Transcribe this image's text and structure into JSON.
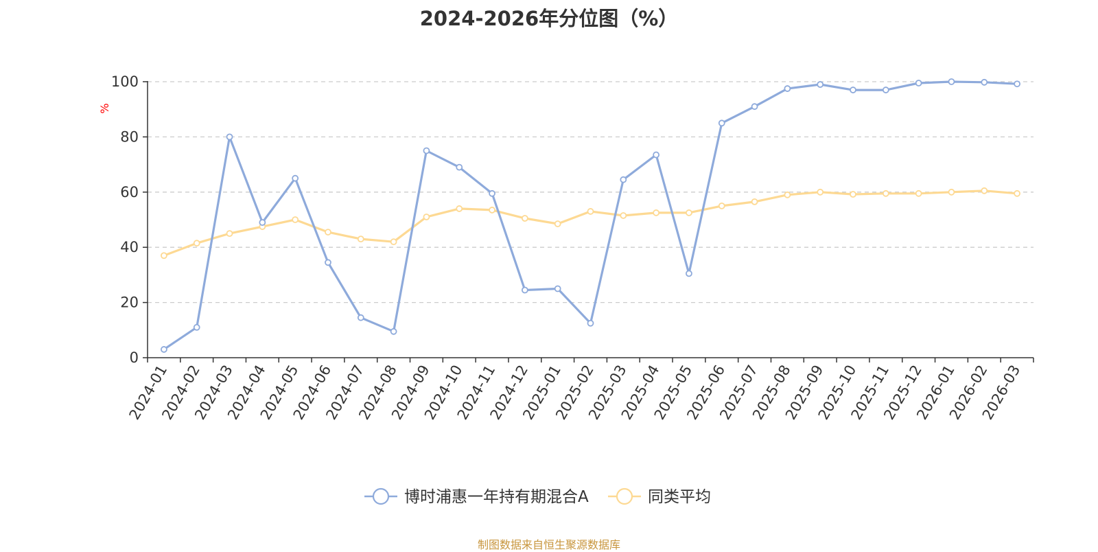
{
  "colors": {
    "series_primary": "#8eaadb",
    "series_secondary": "#fdd993",
    "grid": "#cccccc",
    "axis": "#333333",
    "ylabel": "#ff0000",
    "source": "#c8963e"
  },
  "source_text": "制图数据来自恒生聚源数据库",
  "chart_data": {
    "type": "line",
    "title": "2024-2026年分位图（%）",
    "xlabel": "",
    "ylabel": "%",
    "ylim": [
      0,
      100
    ],
    "yticks": [
      0,
      20,
      40,
      60,
      80,
      100
    ],
    "grid": true,
    "legend_position": "bottom-center",
    "categories": [
      "2024-01",
      "2024-02",
      "2024-03",
      "2024-04",
      "2024-05",
      "2024-06",
      "2024-07",
      "2024-08",
      "2024-09",
      "2024-10",
      "2024-11",
      "2024-12",
      "2025-01",
      "2025-02",
      "2025-03",
      "2025-04",
      "2025-05",
      "2025-06",
      "2025-07",
      "2025-08",
      "2025-09",
      "2025-10",
      "2025-11",
      "2025-12",
      "2026-01",
      "2026-02",
      "2026-03"
    ],
    "series": [
      {
        "name": "博时浦惠一年持有期混合A",
        "values": [
          3,
          11,
          80,
          49,
          65,
          34.5,
          14.5,
          9.5,
          75,
          69,
          59.5,
          24.5,
          25,
          12.5,
          64.5,
          73.5,
          30.5,
          85,
          91,
          97.5,
          99,
          97,
          97,
          99.5,
          100,
          99.8,
          99.2
        ]
      },
      {
        "name": "同类平均",
        "values": [
          37,
          41.5,
          45,
          47.5,
          50,
          45.5,
          43,
          42,
          51,
          54,
          53.5,
          50.5,
          48.5,
          53,
          51.5,
          52.5,
          52.5,
          55,
          56.5,
          59,
          60,
          59.2,
          59.5,
          59.5,
          60,
          60.5,
          59.5
        ]
      }
    ]
  }
}
